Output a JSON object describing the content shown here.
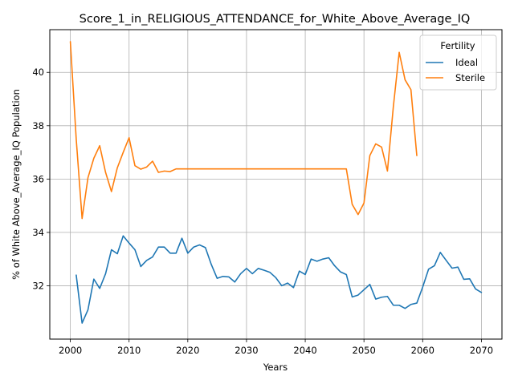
{
  "chart_data": {
    "type": "line",
    "title": "Score_1_in_RELIGIOUS_ATTENDANCE_for_White_Above_Average_IQ",
    "xlabel": "Years",
    "ylabel": "% of White Above_Average_IQ Population",
    "xlim": [
      1996.5,
      2073.5
    ],
    "ylim": [
      30.0,
      41.6
    ],
    "xticks": [
      2000,
      2010,
      2020,
      2030,
      2040,
      2050,
      2060,
      2070
    ],
    "yticks": [
      32,
      34,
      36,
      38,
      40
    ],
    "grid": true,
    "legend": {
      "title": "Fertility",
      "placement": "top-right"
    },
    "series": [
      {
        "name": "Ideal",
        "color": "#1f77b4",
        "x": [
          2001,
          2002,
          2003,
          2004,
          2005,
          2006,
          2007,
          2008,
          2009,
          2010,
          2011,
          2012,
          2013,
          2014,
          2015,
          2016,
          2017,
          2018,
          2019,
          2020,
          2021,
          2022,
          2023,
          2024,
          2025,
          2026,
          2027,
          2028,
          2029,
          2030,
          2031,
          2032,
          2033,
          2034,
          2035,
          2036,
          2037,
          2038,
          2039,
          2040,
          2041,
          2042,
          2043,
          2044,
          2045,
          2046,
          2047,
          2048,
          2049,
          2050,
          2051,
          2052,
          2053,
          2054,
          2055,
          2056,
          2057,
          2058,
          2059,
          2060,
          2061,
          2062,
          2063,
          2064,
          2065,
          2066,
          2067,
          2068,
          2069,
          2070
        ],
        "values": [
          32.4,
          30.6,
          31.1,
          32.25,
          31.9,
          32.45,
          33.35,
          33.2,
          33.87,
          33.6,
          33.35,
          32.72,
          32.95,
          33.08,
          33.45,
          33.45,
          33.22,
          33.22,
          33.78,
          33.22,
          33.45,
          33.53,
          33.43,
          32.8,
          32.28,
          32.35,
          32.33,
          32.14,
          32.45,
          32.65,
          32.45,
          32.65,
          32.58,
          32.5,
          32.3,
          32.0,
          32.1,
          31.93,
          32.55,
          32.42,
          33.0,
          32.92,
          33.0,
          33.05,
          32.75,
          32.52,
          32.42,
          31.58,
          31.65,
          31.85,
          32.05,
          31.5,
          31.57,
          31.6,
          31.27,
          31.27,
          31.15,
          31.3,
          31.35,
          31.95,
          32.62,
          32.75,
          33.25,
          32.95,
          32.66,
          32.7,
          32.24,
          32.26,
          31.88,
          31.75
        ]
      },
      {
        "name": "Sterile",
        "color": "#ff7f0e",
        "x": [
          2000,
          2001,
          2002,
          2003,
          2004,
          2005,
          2006,
          2007,
          2008,
          2009,
          2010,
          2011,
          2012,
          2013,
          2014,
          2015,
          2016,
          2017,
          2018,
          2019,
          2020,
          2021,
          2022,
          2023,
          2024,
          2025,
          2026,
          2027,
          2028,
          2029,
          2030,
          2031,
          2032,
          2033,
          2034,
          2035,
          2036,
          2037,
          2038,
          2039,
          2040,
          2041,
          2042,
          2043,
          2044,
          2045,
          2046,
          2047,
          2048,
          2049,
          2050,
          2051,
          2052,
          2053,
          2054,
          2055,
          2056,
          2057,
          2058,
          2059
        ],
        "values": [
          41.15,
          37.5,
          34.52,
          36.05,
          36.78,
          37.25,
          36.25,
          35.53,
          36.42,
          37.0,
          37.55,
          36.5,
          36.37,
          36.45,
          36.67,
          36.25,
          36.3,
          36.28,
          36.38,
          36.38,
          36.38,
          36.38,
          36.38,
          36.38,
          36.38,
          36.38,
          36.38,
          36.38,
          36.38,
          36.38,
          36.38,
          36.38,
          36.38,
          36.38,
          36.38,
          36.38,
          36.38,
          36.38,
          36.38,
          36.38,
          36.38,
          36.38,
          36.38,
          36.38,
          36.38,
          36.38,
          36.38,
          36.38,
          35.05,
          34.67,
          35.1,
          36.88,
          37.32,
          37.2,
          36.3,
          38.7,
          40.75,
          39.72,
          39.35,
          36.88
        ]
      }
    ]
  }
}
